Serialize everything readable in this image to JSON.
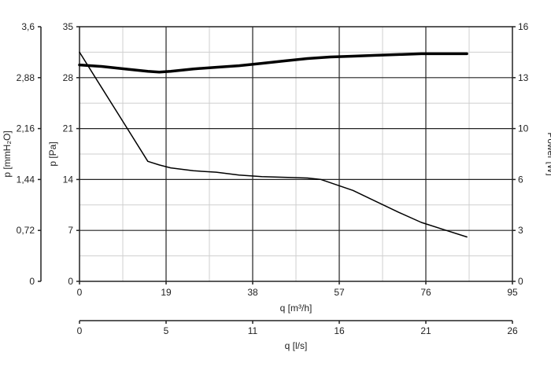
{
  "chart_data": {
    "type": "line",
    "x_axis": {
      "label": "q [m³/h]",
      "ticks": [
        "0",
        "19",
        "38",
        "57",
        "76",
        "95"
      ],
      "range": [
        0,
        95
      ],
      "grid_minor_step": 9.5
    },
    "x_axis_secondary": {
      "label": "q [l/s]",
      "ticks": [
        "0",
        "5",
        "11",
        "16",
        "21",
        "26"
      ]
    },
    "y_axis_left_outer": {
      "label": "p [mmH₂O]",
      "ticks": [
        "0",
        "0,72",
        "1,44",
        "2,16",
        "2,88",
        "3,6"
      ]
    },
    "y_axis_left": {
      "label": "p [Pa]",
      "ticks": [
        "0",
        "7",
        "14",
        "21",
        "28",
        "35"
      ],
      "range": [
        0,
        35
      ],
      "grid_minor_step": 3.5
    },
    "y_axis_right": {
      "label": "Power [W]",
      "ticks": [
        "0",
        "3",
        "6",
        "10",
        "13",
        "16"
      ],
      "range": [
        0,
        16
      ]
    },
    "grid": true,
    "series": [
      {
        "axis": "left",
        "stroke_width": 1.5,
        "points": [
          [
            0,
            31.5
          ],
          [
            5,
            26.5
          ],
          [
            10,
            21.5
          ],
          [
            15,
            16.5
          ],
          [
            17.5,
            16.0
          ],
          [
            20,
            15.6
          ],
          [
            25,
            15.2
          ],
          [
            30,
            15.0
          ],
          [
            35,
            14.6
          ],
          [
            40,
            14.4
          ],
          [
            45,
            14.3
          ],
          [
            50,
            14.2
          ],
          [
            53,
            14.0
          ],
          [
            60,
            12.5
          ],
          [
            65,
            11.0
          ],
          [
            70,
            9.5
          ],
          [
            75,
            8.1
          ],
          [
            80,
            7.1
          ],
          [
            85,
            6.1
          ]
        ]
      },
      {
        "axis": "right",
        "stroke_width": 3.5,
        "points": [
          [
            0,
            13.6
          ],
          [
            5,
            13.5
          ],
          [
            10,
            13.35
          ],
          [
            15,
            13.2
          ],
          [
            17.5,
            13.15
          ],
          [
            20,
            13.2
          ],
          [
            25,
            13.35
          ],
          [
            30,
            13.45
          ],
          [
            35,
            13.55
          ],
          [
            40,
            13.7
          ],
          [
            45,
            13.85
          ],
          [
            50,
            14.0
          ],
          [
            55,
            14.1
          ],
          [
            60,
            14.15
          ],
          [
            65,
            14.2
          ],
          [
            70,
            14.25
          ],
          [
            75,
            14.3
          ],
          [
            80,
            14.3
          ],
          [
            85,
            14.3
          ]
        ]
      }
    ],
    "colors": {
      "line": "#000000",
      "grid_major": "#222222",
      "grid_minor": "#cfcfcf",
      "axis": "#222222"
    }
  }
}
